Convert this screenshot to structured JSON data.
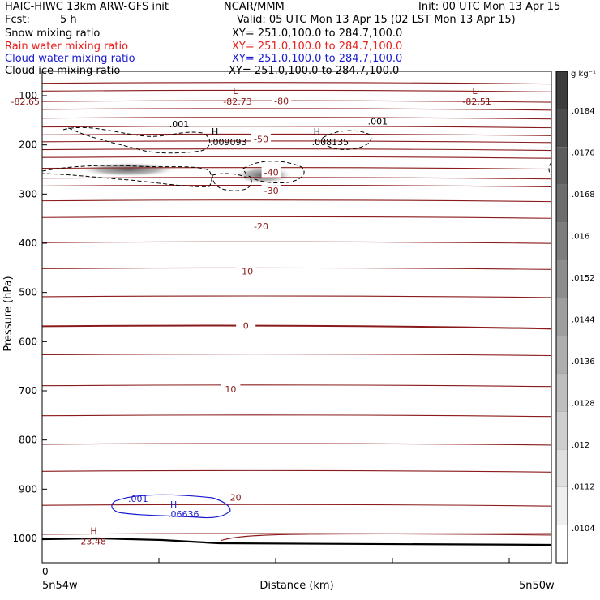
{
  "header": {
    "model": "HAIC-HIWC 13km ARW-GFS init",
    "org": "NCAR/MMM",
    "init": "Init: 00 UTC Mon 13 Apr 15",
    "fcst_label": "Fcst:",
    "fcst_value": "5 h",
    "valid": "Valid: 05 UTC Mon 13 Apr 15 (02 LST Mon 13 Apr 15)"
  },
  "fields": [
    {
      "name": "Snow mixing ratio",
      "xy": "XY= 251.0,100.0 to 284.7,100.0",
      "color": "#000000"
    },
    {
      "name": "Rain water mixing ratio",
      "xy": "XY= 251.0,100.0 to 284.7,100.0",
      "color": "#e8201e"
    },
    {
      "name": "Cloud water mixing ratio",
      "xy": "XY= 251.0,100.0 to 284.7,100.0",
      "color": "#1a1ad0"
    },
    {
      "name": "Cloud ice mixing ratio",
      "xy": "XY= 251.0,100.0 to 284.7,100.0",
      "color": "#000000"
    }
  ],
  "chart_data": {
    "type": "cross-section",
    "xlabel": "Distance (km)",
    "ylabel": "Pressure (hPa)",
    "x_ticks": [
      "0"
    ],
    "x_end_labels": [
      "5n54w",
      "5n50w"
    ],
    "ylim": [
      1050,
      50
    ],
    "y_ticks": [
      100,
      200,
      300,
      400,
      500,
      600,
      700,
      800,
      900,
      1000
    ],
    "temperature_contours": {
      "color": "#8b1a1a",
      "levels": [
        {
          "p": 73
        },
        {
          "p": 89
        },
        {
          "p": 110
        },
        {
          "p": 126
        },
        {
          "p": 144
        },
        {
          "p": 162
        },
        {
          "p": 178
        },
        {
          "p": 192
        },
        {
          "p": 208
        },
        {
          "p": 224
        },
        {
          "p": 246
        },
        {
          "p": 266
        },
        {
          "p": 282
        },
        {
          "p": 312
        },
        {
          "p": 346
        },
        {
          "p": 397
        },
        {
          "p": 450
        },
        {
          "p": 507
        },
        {
          "p": 567,
          "label": "0"
        },
        {
          "p": 625
        },
        {
          "p": 688,
          "label": "10"
        },
        {
          "p": 749
        },
        {
          "p": 807
        },
        {
          "p": 862
        },
        {
          "p": 931
        },
        {
          "p": 990
        }
      ],
      "labels": [
        {
          "text": "-80",
          "x": 0.47,
          "p": 111
        },
        {
          "text": "-50",
          "x": 0.43,
          "p": 188
        },
        {
          "text": "-40",
          "x": 0.45,
          "p": 256
        },
        {
          "text": "-30",
          "x": 0.45,
          "p": 293
        },
        {
          "text": "-20",
          "x": 0.43,
          "p": 365
        },
        {
          "text": "-10",
          "x": 0.4,
          "p": 457
        },
        {
          "text": "0",
          "x": 0.4,
          "p": 567
        },
        {
          "text": "10",
          "x": 0.37,
          "p": 697
        },
        {
          "text": "20",
          "x": 0.38,
          "p": 917
        }
      ],
      "extrema": [
        {
          "mark": "L",
          "value": "-82.73",
          "x": 0.33,
          "p": 110
        },
        {
          "mark": "L",
          "value": "-82.51",
          "x": 0.8,
          "p": 110
        },
        {
          "mark": "",
          "value": "-82.65",
          "x": 0.0,
          "p": 110
        },
        {
          "mark": "H",
          "value": "23.48",
          "x": 0.05,
          "p": 1004
        }
      ]
    },
    "cloud_ice_max": [
      {
        "mark": "H",
        "value": ".009093",
        "x": 0.25,
        "p": 245
      },
      {
        "mark": "H",
        "value": ".008135",
        "x": 0.45,
        "p": 245
      }
    ],
    "cloud_ice_labels": [
      {
        "text": ".001",
        "x": 0.17,
        "p": 181
      },
      {
        "text": ".001",
        "x": 0.56,
        "p": 175
      }
    ],
    "cloud_water": {
      "mark": "H",
      "value": ".06636",
      "min_label": ".001",
      "x": 0.25,
      "p": 941
    },
    "snow_shading_scale": {
      "unit": "g kg⁻¹",
      "ticks": [
        ".0184",
        ".0176",
        ".0168",
        ".016",
        ".0152",
        ".0144",
        ".0136",
        ".0128",
        ".012",
        ".0112",
        ".0104"
      ]
    }
  }
}
